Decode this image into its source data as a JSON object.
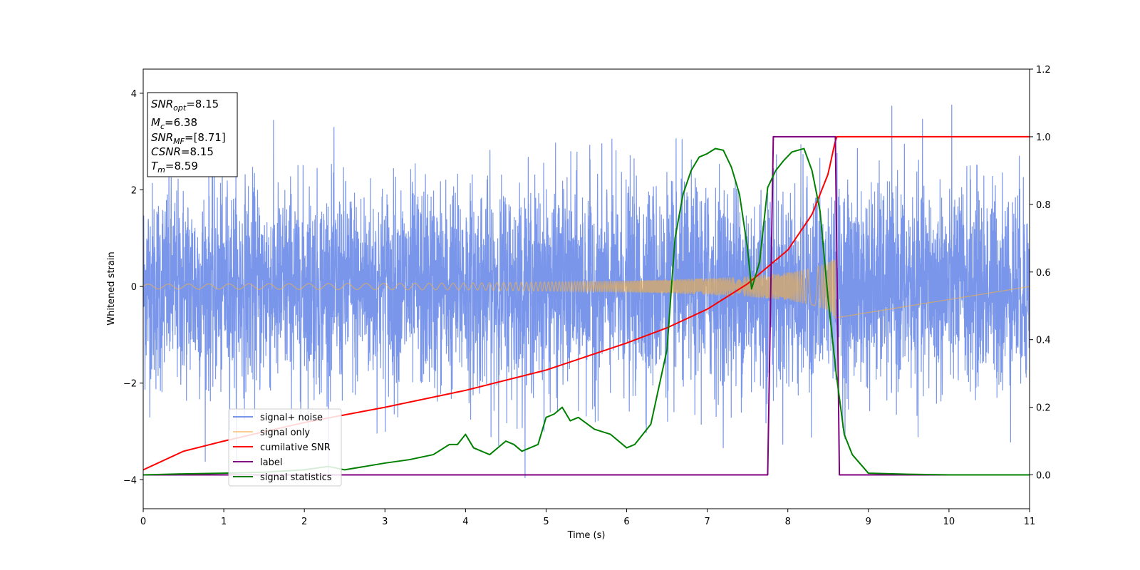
{
  "chart_data": {
    "type": "line",
    "title": "",
    "xlabel": "Time (s)",
    "ylabel": "Whitened strain",
    "y2label": "",
    "xlim": [
      0,
      11
    ],
    "ylim": [
      -4.6,
      4.5
    ],
    "y2lim": [
      -0.1,
      1.2
    ],
    "xticks": [
      "0",
      "1",
      "2",
      "3",
      "4",
      "5",
      "6",
      "7",
      "8",
      "9",
      "10",
      "11"
    ],
    "yticks": [
      "4",
      "2",
      "0",
      "−2",
      "−4"
    ],
    "y2ticks": [
      "1.2",
      "1.0",
      "0.8",
      "0.6",
      "0.4",
      "0.2",
      "0.0"
    ],
    "grid": false,
    "legend_position": "lower-left",
    "annotation": {
      "lines": [
        {
          "sym": "SNR",
          "sub": "opt",
          "value": "=8.15"
        },
        {
          "sym": "M",
          "sub": "c",
          "value": "=6.38"
        },
        {
          "sym": "SNR",
          "sub": "MF",
          "value": "=[8.71]"
        },
        {
          "sym": "CSNR",
          "sub": "",
          "value": "=8.15"
        },
        {
          "sym": "T",
          "sub": "m",
          "value": "=8.59"
        }
      ]
    },
    "series": [
      {
        "name": "signal+ noise",
        "color": "#4169e1",
        "axis": "left",
        "noise_std": 1.05,
        "noise_peak": 4.1,
        "merger_time": 8.59,
        "x_end": 11
      },
      {
        "name": "signal only",
        "color": "#f5b041",
        "axis": "left",
        "amplitude_envelope": [
          [
            0,
            0.05
          ],
          [
            4,
            0.07
          ],
          [
            6,
            0.12
          ],
          [
            7,
            0.17
          ],
          [
            7.5,
            0.21
          ],
          [
            8,
            0.29
          ],
          [
            8.3,
            0.38
          ],
          [
            8.5,
            0.5
          ],
          [
            8.59,
            0.65
          ]
        ],
        "merger_time": 8.59
      },
      {
        "name": "cumilative SNR",
        "color": "#ff0000",
        "axis": "right",
        "x": [
          0,
          0.5,
          1,
          2,
          3,
          4,
          5,
          6,
          6.5,
          7,
          7.5,
          8,
          8.3,
          8.5,
          8.6,
          11
        ],
        "y": [
          0.015,
          0.07,
          0.1,
          0.155,
          0.2,
          0.25,
          0.31,
          0.39,
          0.435,
          0.49,
          0.565,
          0.665,
          0.77,
          0.89,
          1.0,
          1.0
        ]
      },
      {
        "name": "label",
        "color": "#800080",
        "axis": "right",
        "x": [
          0,
          7.75,
          7.82,
          8.59,
          8.64,
          11
        ],
        "y": [
          0,
          0,
          1,
          1,
          0,
          0
        ]
      },
      {
        "name": "signal statistics",
        "color": "#008000",
        "axis": "right",
        "x": [
          0,
          0.5,
          1,
          1.5,
          2,
          2.3,
          2.5,
          3,
          3.3,
          3.6,
          3.8,
          3.9,
          4,
          4.1,
          4.2,
          4.3,
          4.5,
          4.6,
          4.7,
          4.9,
          5.0,
          5.1,
          5.2,
          5.3,
          5.4,
          5.6,
          5.8,
          6.0,
          6.1,
          6.3,
          6.5,
          6.6,
          6.7,
          6.8,
          6.9,
          7.0,
          7.1,
          7.2,
          7.3,
          7.4,
          7.5,
          7.55,
          7.65,
          7.75,
          7.85,
          7.95,
          8.05,
          8.2,
          8.3,
          8.4,
          8.5,
          8.6,
          8.7,
          8.8,
          9.0,
          9.5,
          10,
          11
        ],
        "y": [
          0.0,
          0.003,
          0.005,
          0.008,
          0.015,
          0.025,
          0.015,
          0.035,
          0.045,
          0.06,
          0.09,
          0.09,
          0.12,
          0.08,
          0.07,
          0.06,
          0.1,
          0.09,
          0.07,
          0.09,
          0.17,
          0.18,
          0.2,
          0.16,
          0.17,
          0.135,
          0.12,
          0.08,
          0.09,
          0.15,
          0.37,
          0.7,
          0.83,
          0.9,
          0.94,
          0.95,
          0.965,
          0.96,
          0.91,
          0.83,
          0.67,
          0.55,
          0.63,
          0.85,
          0.9,
          0.93,
          0.955,
          0.965,
          0.9,
          0.78,
          0.52,
          0.3,
          0.12,
          0.06,
          0.005,
          0.002,
          0.0,
          0.0
        ]
      }
    ]
  }
}
